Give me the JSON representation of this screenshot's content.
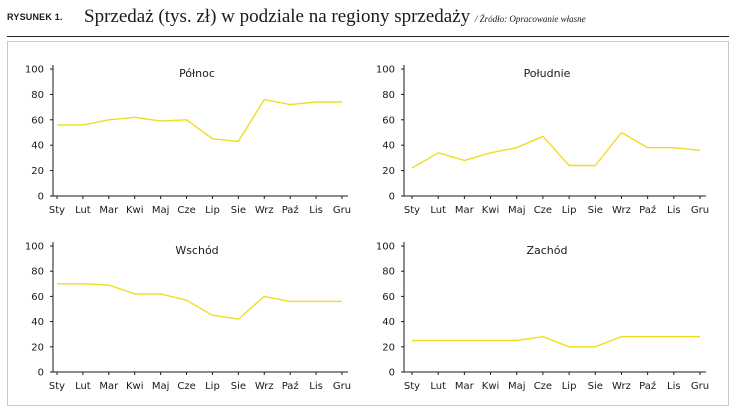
{
  "figure": {
    "label": "RYSUNEK 1.",
    "title": "Sprzedaż (tys. zł) w podziale na regiony sprzedaży",
    "source": "/ Źródło: Opracowanie własne"
  },
  "colors": {
    "line": "#f2dc1e",
    "axis": "#1a1a1a",
    "text": "#1a1a1a"
  },
  "chart_data": [
    {
      "type": "line",
      "title": "Północ",
      "categories": [
        "Sty",
        "Lut",
        "Mar",
        "Kwi",
        "Maj",
        "Cze",
        "Lip",
        "Sie",
        "Wrz",
        "Paź",
        "Lis",
        "Gru"
      ],
      "values": [
        56,
        56,
        60,
        62,
        59,
        60,
        45,
        43,
        76,
        72,
        74,
        74
      ],
      "yticks": [
        "100",
        "80",
        "60",
        "40",
        "20",
        "0"
      ],
      "ylim": [
        0,
        100
      ],
      "grid": false
    },
    {
      "type": "line",
      "title": "Południe",
      "categories": [
        "Sty",
        "Lut",
        "Mar",
        "Kwi",
        "Maj",
        "Cze",
        "Lip",
        "Sie",
        "Wrz",
        "Paź",
        "Lis",
        "Gru"
      ],
      "values": [
        22,
        34,
        28,
        34,
        38,
        47,
        24,
        24,
        50,
        38,
        38,
        36
      ],
      "yticks": [
        "100",
        "80",
        "60",
        "40",
        "20",
        "0"
      ],
      "ylim": [
        0,
        100
      ],
      "grid": false
    },
    {
      "type": "line",
      "title": "Wschód",
      "categories": [
        "Sty",
        "Lut",
        "Mar",
        "Kwi",
        "Maj",
        "Cze",
        "Lip",
        "Sie",
        "Wrz",
        "Paź",
        "Lis",
        "Gru"
      ],
      "values": [
        70,
        70,
        69,
        62,
        62,
        57,
        45,
        42,
        60,
        56,
        56,
        56
      ],
      "yticks": [
        "100",
        "80",
        "60",
        "40",
        "20",
        "0"
      ],
      "ylim": [
        0,
        100
      ],
      "grid": false
    },
    {
      "type": "line",
      "title": "Zachód",
      "categories": [
        "Sty",
        "Lut",
        "Mar",
        "Kwi",
        "Maj",
        "Cze",
        "Lip",
        "Sie",
        "Wrz",
        "Paź",
        "Lis",
        "Gru"
      ],
      "values": [
        25,
        25,
        25,
        25,
        25,
        28,
        20,
        20,
        28,
        28,
        28,
        28
      ],
      "yticks": [
        "100",
        "80",
        "60",
        "40",
        "20",
        "0"
      ],
      "ylim": [
        0,
        100
      ],
      "grid": false
    }
  ]
}
